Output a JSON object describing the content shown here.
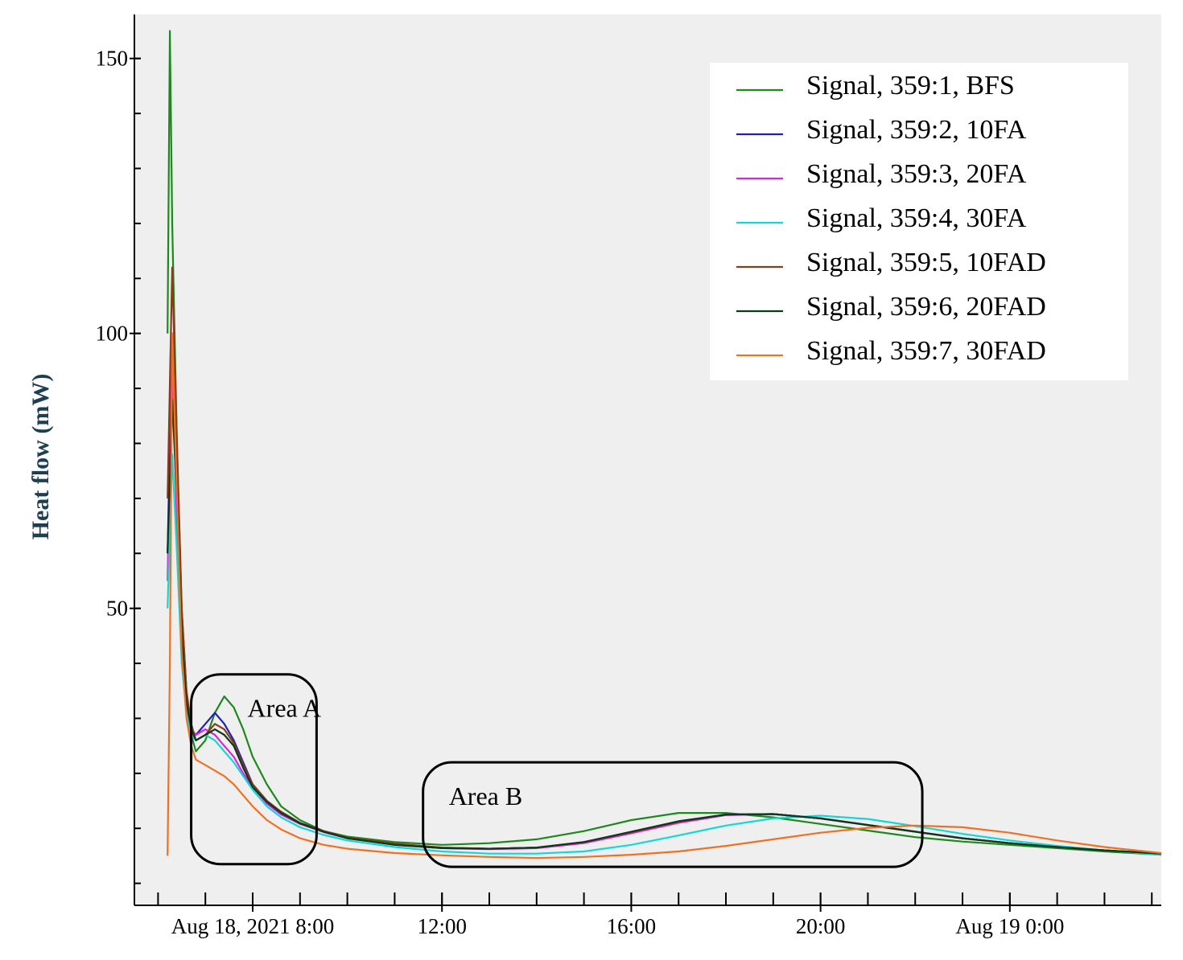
{
  "chart_data": {
    "type": "line",
    "title": "",
    "xlabel": "",
    "ylabel": "Heat flow (mW)",
    "x_unit": "hours since Aug 18, 2021 0:00",
    "xlim": [
      5.5,
      27.2
    ],
    "ylim": [
      -4,
      158
    ],
    "y_ticks": [
      {
        "value": 150,
        "label": "150"
      },
      {
        "value": 100,
        "label": "100"
      },
      {
        "value": 50,
        "label": "50"
      }
    ],
    "y_minor_step": 10,
    "x_ticks": [
      {
        "value": 8,
        "label": "Aug 18, 2021 8:00"
      },
      {
        "value": 12,
        "label": "12:00"
      },
      {
        "value": 16,
        "label": "16:00"
      },
      {
        "value": 20,
        "label": "20:00"
      },
      {
        "value": 24,
        "label": "Aug 19 0:00"
      }
    ],
    "x_minor_step": 1,
    "legend": "top-right",
    "series": [
      {
        "name": "Signal, 359:1, BFS",
        "color": "#1a8a1a",
        "x": [
          6.2,
          6.25,
          6.3,
          6.4,
          6.5,
          6.6,
          6.7,
          6.8,
          7.0,
          7.2,
          7.4,
          7.6,
          7.8,
          8.0,
          8.3,
          8.6,
          9.0,
          9.5,
          10.0,
          11.0,
          12.0,
          13.0,
          14.0,
          15.0,
          16.0,
          17.0,
          18.0,
          19.0,
          20.0,
          21.0,
          22.0,
          23.0,
          24.0,
          25.0,
          26.0,
          27.2
        ],
        "y": [
          100,
          155,
          120,
          80,
          50,
          35,
          27,
          24,
          26,
          31,
          34,
          32,
          28,
          23,
          18,
          14,
          11.5,
          9.5,
          8.5,
          7.5,
          7,
          7.3,
          8,
          9.5,
          11.5,
          12.8,
          12.8,
          12,
          10.8,
          9.6,
          8.4,
          7.6,
          7,
          6.4,
          5.8,
          5.2
        ]
      },
      {
        "name": "Signal, 359:2, 10FA",
        "color": "#2020b0",
        "x": [
          6.2,
          6.3,
          6.4,
          6.5,
          6.6,
          6.7,
          6.8,
          7.0,
          7.2,
          7.4,
          7.6,
          7.8,
          8.0,
          8.3,
          8.6,
          9.0,
          9.5,
          10.0,
          11.0,
          12.0,
          13.0,
          14.0,
          15.0,
          16.0,
          17.0,
          18.0,
          19.0,
          20.0,
          21.0,
          22.0,
          23.0,
          24.0,
          25.0,
          26.0,
          27.2
        ],
        "y": [
          60,
          100,
          70,
          45,
          33,
          28,
          27,
          29,
          31,
          29,
          26,
          22,
          18,
          15,
          13,
          11,
          9.5,
          8.3,
          7.2,
          6.5,
          6.3,
          6.5,
          7.5,
          9.3,
          11.2,
          12.5,
          12.6,
          11.8,
          10.6,
          9.4,
          8.2,
          7.3,
          6.6,
          6,
          5.4
        ]
      },
      {
        "name": "Signal, 359:3, 20FA",
        "color": "#e020e0",
        "x": [
          6.2,
          6.3,
          6.4,
          6.5,
          6.6,
          6.7,
          6.8,
          7.0,
          7.2,
          7.4,
          7.6,
          7.8,
          8.0,
          8.3,
          8.6,
          9.0,
          9.5,
          10.0,
          11.0,
          12.0,
          13.0,
          14.0,
          15.0,
          16.0,
          17.0,
          18.0,
          19.0,
          20.0,
          21.0,
          22.0,
          23.0,
          24.0,
          25.0,
          26.0,
          27.2
        ],
        "y": [
          55,
          95,
          65,
          42,
          32,
          28,
          27,
          28,
          27,
          25,
          23,
          20,
          17.5,
          14.5,
          12.5,
          10.8,
          9.3,
          8.2,
          7,
          6.4,
          6.2,
          6.4,
          7.3,
          9.1,
          11,
          12.4,
          12.6,
          11.8,
          10.6,
          9.4,
          8.2,
          7.3,
          6.6,
          6,
          5.4
        ]
      },
      {
        "name": "Signal, 359:4, 30FA",
        "color": "#10d8d8",
        "x": [
          6.2,
          6.3,
          6.4,
          6.5,
          6.6,
          6.7,
          6.8,
          7.0,
          7.2,
          7.4,
          7.6,
          7.8,
          8.0,
          8.3,
          8.6,
          9.0,
          9.5,
          10.0,
          11.0,
          12.0,
          13.0,
          14.0,
          15.0,
          16.0,
          17.0,
          18.0,
          19.0,
          20.0,
          21.0,
          22.0,
          23.0,
          24.0,
          25.0,
          26.0,
          27.2
        ],
        "y": [
          50,
          78,
          60,
          40,
          31,
          27,
          26,
          27,
          26,
          24,
          22,
          19.5,
          17,
          14,
          12,
          10.2,
          8.8,
          7.8,
          6.6,
          5.8,
          5.4,
          5.4,
          5.8,
          7,
          8.7,
          10.5,
          11.8,
          12.3,
          11.7,
          10.4,
          9,
          7.8,
          6.8,
          6,
          5.2
        ]
      },
      {
        "name": "Signal, 359:5, 10FAD",
        "color": "#8b3a1a",
        "x": [
          6.2,
          6.3,
          6.4,
          6.5,
          6.6,
          6.7,
          6.8,
          7.0,
          7.2,
          7.4,
          7.6,
          7.8,
          8.0,
          8.3,
          8.6,
          9.0,
          9.5,
          10.0,
          11.0,
          12.0,
          13.0,
          14.0,
          15.0,
          16.0,
          17.0,
          18.0,
          19.0,
          20.0,
          21.0,
          22.0,
          23.0,
          24.0,
          25.0,
          26.0,
          27.2
        ],
        "y": [
          70,
          112,
          80,
          50,
          35,
          29,
          26,
          27,
          29,
          28,
          25.5,
          21.5,
          18,
          15,
          13,
          11,
          9.5,
          8.3,
          7.2,
          6.5,
          6.3,
          6.5,
          7.5,
          9.3,
          11.2,
          12.5,
          12.6,
          11.8,
          10.6,
          9.4,
          8.2,
          7.3,
          6.6,
          6,
          5.4
        ]
      },
      {
        "name": "Signal, 359:6, 20FAD",
        "color": "#0a3a1a",
        "x": [
          6.2,
          6.3,
          6.4,
          6.5,
          6.6,
          6.7,
          6.8,
          7.0,
          7.2,
          7.4,
          7.6,
          7.8,
          8.0,
          8.3,
          8.6,
          9.0,
          9.5,
          10.0,
          11.0,
          12.0,
          13.0,
          14.0,
          15.0,
          16.0,
          17.0,
          18.0,
          19.0,
          20.0,
          21.0,
          22.0,
          23.0,
          24.0,
          25.0,
          26.0,
          27.2
        ],
        "y": [
          60,
          88,
          70,
          45,
          33,
          28,
          26,
          27,
          28,
          27,
          25,
          21,
          17.5,
          14.8,
          12.8,
          10.9,
          9.4,
          8.2,
          7,
          6.4,
          6.3,
          6.5,
          7.5,
          9.4,
          11.3,
          12.5,
          12.6,
          11.8,
          10.6,
          9.4,
          8.2,
          7.3,
          6.6,
          6,
          5.4
        ]
      },
      {
        "name": "Signal, 359:7, 30FAD",
        "color": "#f07020",
        "x": [
          6.2,
          6.25,
          6.3,
          6.4,
          6.5,
          6.6,
          6.7,
          6.8,
          7.0,
          7.2,
          7.4,
          7.6,
          7.8,
          8.0,
          8.3,
          8.6,
          9.0,
          9.5,
          10.0,
          11.0,
          12.0,
          13.0,
          14.0,
          15.0,
          16.0,
          17.0,
          18.0,
          19.0,
          20.0,
          21.0,
          22.0,
          23.0,
          24.0,
          25.0,
          26.0,
          27.2
        ],
        "y": [
          5,
          40,
          100,
          70,
          42,
          30,
          25,
          22.5,
          21.5,
          20.5,
          19.5,
          18,
          16,
          14,
          11.5,
          9.8,
          8.2,
          7,
          6.3,
          5.5,
          5.1,
          4.8,
          4.6,
          4.8,
          5.2,
          5.8,
          6.8,
          8,
          9.2,
          10.1,
          10.5,
          10.2,
          9.2,
          7.8,
          6.6,
          5.5
        ]
      }
    ],
    "annotations": [
      {
        "label": "Area A",
        "x_range": [
          6.7,
          9.35
        ],
        "y_range": [
          3.5,
          38
        ]
      },
      {
        "label": "Area B",
        "x_range": [
          11.6,
          22.15
        ],
        "y_range": [
          3,
          22
        ]
      }
    ]
  }
}
